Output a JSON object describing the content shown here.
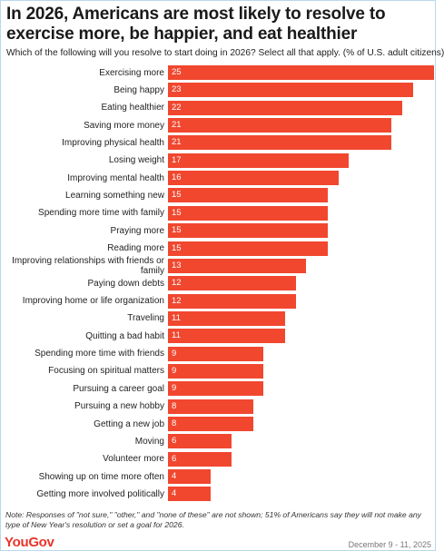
{
  "chart_data": {
    "type": "bar",
    "title": "In 2026, Americans are most likely to resolve to exercise more, be happier, and eat healthier",
    "subtitle": "Which of the following will you resolve to start doing in 2026? Select all that apply. (% of U.S. adult citizens)",
    "categories": [
      "Exercising more",
      "Being happy",
      "Eating healthier",
      "Saving more money",
      "Improving physical health",
      "Losing weight",
      "Improving mental health",
      "Learning something new",
      "Spending more time with family",
      "Praying more",
      "Reading more",
      "Improving relationships with friends or family",
      "Paying down debts",
      "Improving home or life organization",
      "Traveling",
      "Quitting a bad habit",
      "Spending more time with friends",
      "Focusing on spiritual matters",
      "Pursuing a career goal",
      "Pursuing a new hobby",
      "Getting a new job",
      "Moving",
      "Volunteer more",
      "Showing up on time more often",
      "Getting more involved politically"
    ],
    "values": [
      25,
      23,
      22,
      21,
      21,
      17,
      16,
      15,
      15,
      15,
      15,
      13,
      12,
      12,
      11,
      11,
      9,
      9,
      9,
      8,
      8,
      6,
      6,
      4,
      4
    ],
    "color": "#f1472f",
    "note": "Note: Responses of \"not sure,\" \"other,\" and \"none of these\" are not shown; 51% of Americans say they will not make any type of New Year's resolution or set a goal for 2026.",
    "source": "YouGov",
    "date": "December 9 - 11, 2025"
  }
}
